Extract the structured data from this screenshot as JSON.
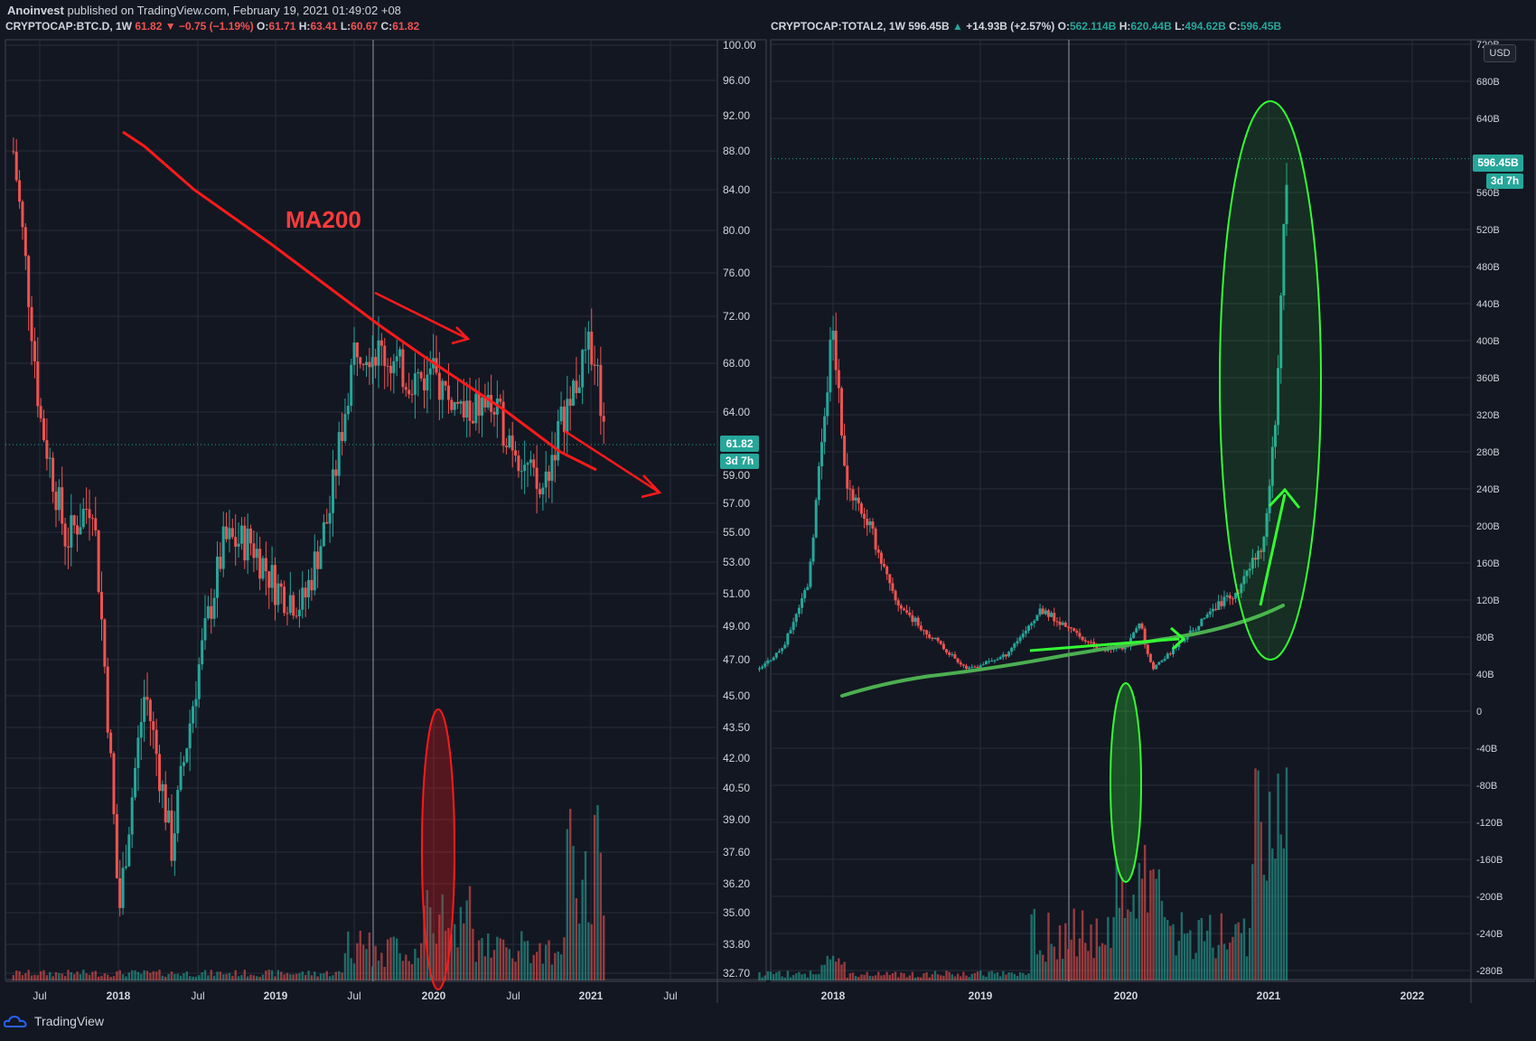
{
  "header": {
    "author": "Anoinvest",
    "published": "published on TradingView.com, February 19, 2021 01:49:02 +08"
  },
  "left": {
    "symbol": "CRYPTOCAP:BTC.D, 1W",
    "last": "61.82",
    "change_arrow": "▼",
    "change": "−0.75 (−1.19%)",
    "o_label": "O:",
    "o": "61.71",
    "h_label": "H:",
    "h": "63.41",
    "l_label": "L:",
    "l": "60.67",
    "c_label": "C:",
    "c": "61.82",
    "price_tag": "61.82",
    "countdown": "3d 7h",
    "annotation": "MA200"
  },
  "right": {
    "symbol": "CRYPTOCAP:TOTAL2, 1W",
    "last": "596.45B",
    "change_arrow": "▲",
    "change": "+14.93B (+2.57%)",
    "o_label": "O:",
    "o": "562.114B",
    "h_label": "H:",
    "h": "620.44B",
    "l_label": "L:",
    "l": "494.62B",
    "c_label": "C:",
    "c": "596.45B",
    "price_tag": "596.45B",
    "countdown": "3d 7h",
    "currency": "USD"
  },
  "footer": {
    "brand": "TradingView"
  },
  "colors": {
    "bg": "#131722",
    "up": "#26a69a",
    "down": "#ef5350",
    "grid": "#2a2e39",
    "annot_red": "#ff1a1a",
    "annot_green": "#33ff33"
  },
  "chart_data": [
    {
      "type": "candlestick",
      "title": "CRYPTOCAP:BTC.D, 1W",
      "x_ticks": [
        "Jul",
        "2018",
        "Jul",
        "2019",
        "Jul",
        "2020",
        "Jul",
        "2021",
        "Jul"
      ],
      "y_ticks": [
        "100.00",
        "96.00",
        "92.00",
        "88.00",
        "84.00",
        "80.00",
        "76.00",
        "72.00",
        "68.00",
        "64.00",
        "61.82",
        "59.00",
        "57.00",
        "55.00",
        "53.00",
        "51.00",
        "49.00",
        "47.00",
        "45.00",
        "43.50",
        "42.00",
        "40.50",
        "39.00",
        "37.60",
        "36.20",
        "35.00",
        "33.80",
        "32.70"
      ],
      "y_scale": "log",
      "ylim": [
        32.7,
        100
      ],
      "series_approx": [
        [
          "2017-05",
          88
        ],
        [
          "2017-07",
          64
        ],
        [
          "2017-09",
          55
        ],
        [
          "2017-11",
          58
        ],
        [
          "2018-01",
          35
        ],
        [
          "2018-03",
          46
        ],
        [
          "2018-05",
          38
        ],
        [
          "2018-07",
          47
        ],
        [
          "2018-09",
          55
        ],
        [
          "2018-11",
          55
        ],
        [
          "2019-01",
          52
        ],
        [
          "2019-03",
          51
        ],
        [
          "2019-05",
          57
        ],
        [
          "2019-07",
          70
        ],
        [
          "2019-09",
          69
        ],
        [
          "2019-11",
          67
        ],
        [
          "2020-01",
          67
        ],
        [
          "2020-03",
          64
        ],
        [
          "2020-05",
          65
        ],
        [
          "2020-07",
          62
        ],
        [
          "2020-09",
          58
        ],
        [
          "2020-11",
          65
        ],
        [
          "2021-01",
          70
        ],
        [
          "2021-02",
          61.82
        ]
      ],
      "annotation": "MA200"
    },
    {
      "type": "candlestick",
      "title": "CRYPTOCAP:TOTAL2, 1W",
      "x_ticks": [
        "2018",
        "2019",
        "2020",
        "2021",
        "2022"
      ],
      "y_ticks": [
        "720B",
        "680B",
        "640B",
        "596.45B",
        "560B",
        "520B",
        "480B",
        "440B",
        "400B",
        "360B",
        "320B",
        "280B",
        "240B",
        "200B",
        "160B",
        "120B",
        "80B",
        "40B",
        "0",
        "-40B",
        "-80B",
        "-120B",
        "-160B",
        "-200B",
        "-240B",
        "-280B"
      ],
      "ylim": [
        -280,
        720
      ],
      "series_approx": [
        [
          "2017-07",
          45
        ],
        [
          "2017-09",
          70
        ],
        [
          "2017-11",
          140
        ],
        [
          "2018-01",
          420
        ],
        [
          "2018-02",
          250
        ],
        [
          "2018-04",
          200
        ],
        [
          "2018-06",
          120
        ],
        [
          "2018-09",
          80
        ],
        [
          "2018-12",
          45
        ],
        [
          "2019-03",
          60
        ],
        [
          "2019-06",
          110
        ],
        [
          "2019-08",
          90
        ],
        [
          "2019-11",
          65
        ],
        [
          "2020-01",
          70
        ],
        [
          "2020-02",
          95
        ],
        [
          "2020-03",
          45
        ],
        [
          "2020-05",
          70
        ],
        [
          "2020-08",
          110
        ],
        [
          "2020-10",
          130
        ],
        [
          "2020-12",
          180
        ],
        [
          "2021-01",
          300
        ],
        [
          "2021-02",
          596.45
        ]
      ]
    }
  ]
}
